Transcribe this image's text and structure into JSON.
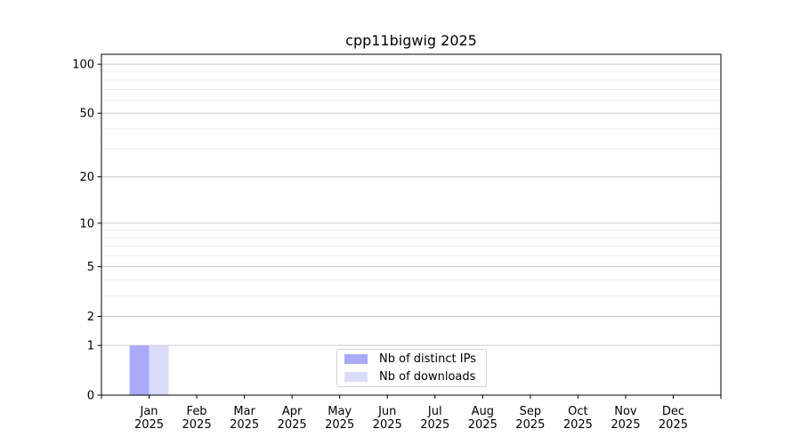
{
  "chart_data": {
    "type": "bar",
    "title": "cpp11bigwig 2025",
    "year_label": "2025",
    "categories": [
      "Jan",
      "Feb",
      "Mar",
      "Apr",
      "May",
      "Jun",
      "Jul",
      "Aug",
      "Sep",
      "Oct",
      "Nov",
      "Dec"
    ],
    "series": [
      {
        "name": "Nb of distinct IPs",
        "color": "#aaaaf8",
        "values": [
          1,
          0,
          0,
          0,
          0,
          0,
          0,
          0,
          0,
          0,
          0,
          0
        ]
      },
      {
        "name": "Nb of downloads",
        "color": "#dbdbfa",
        "values": [
          1,
          0,
          0,
          0,
          0,
          0,
          0,
          0,
          0,
          0,
          0,
          0
        ]
      }
    ],
    "yscale": "log1p",
    "yticks": [
      0,
      1,
      2,
      5,
      10,
      20,
      50,
      100
    ],
    "minor_grid_values": [
      3,
      4,
      6,
      7,
      8,
      9,
      30,
      40,
      60,
      70,
      80,
      90
    ],
    "ylim": [
      0,
      115
    ],
    "xlabel": "",
    "ylabel": "",
    "grid": "horizontal",
    "legend_position": "lower center",
    "colors": {
      "axis": "#000000",
      "text": "#000000",
      "major_grid": "#c9c9c9",
      "minor_grid": "#efefef",
      "legend_border": "#d2d2d2"
    }
  }
}
